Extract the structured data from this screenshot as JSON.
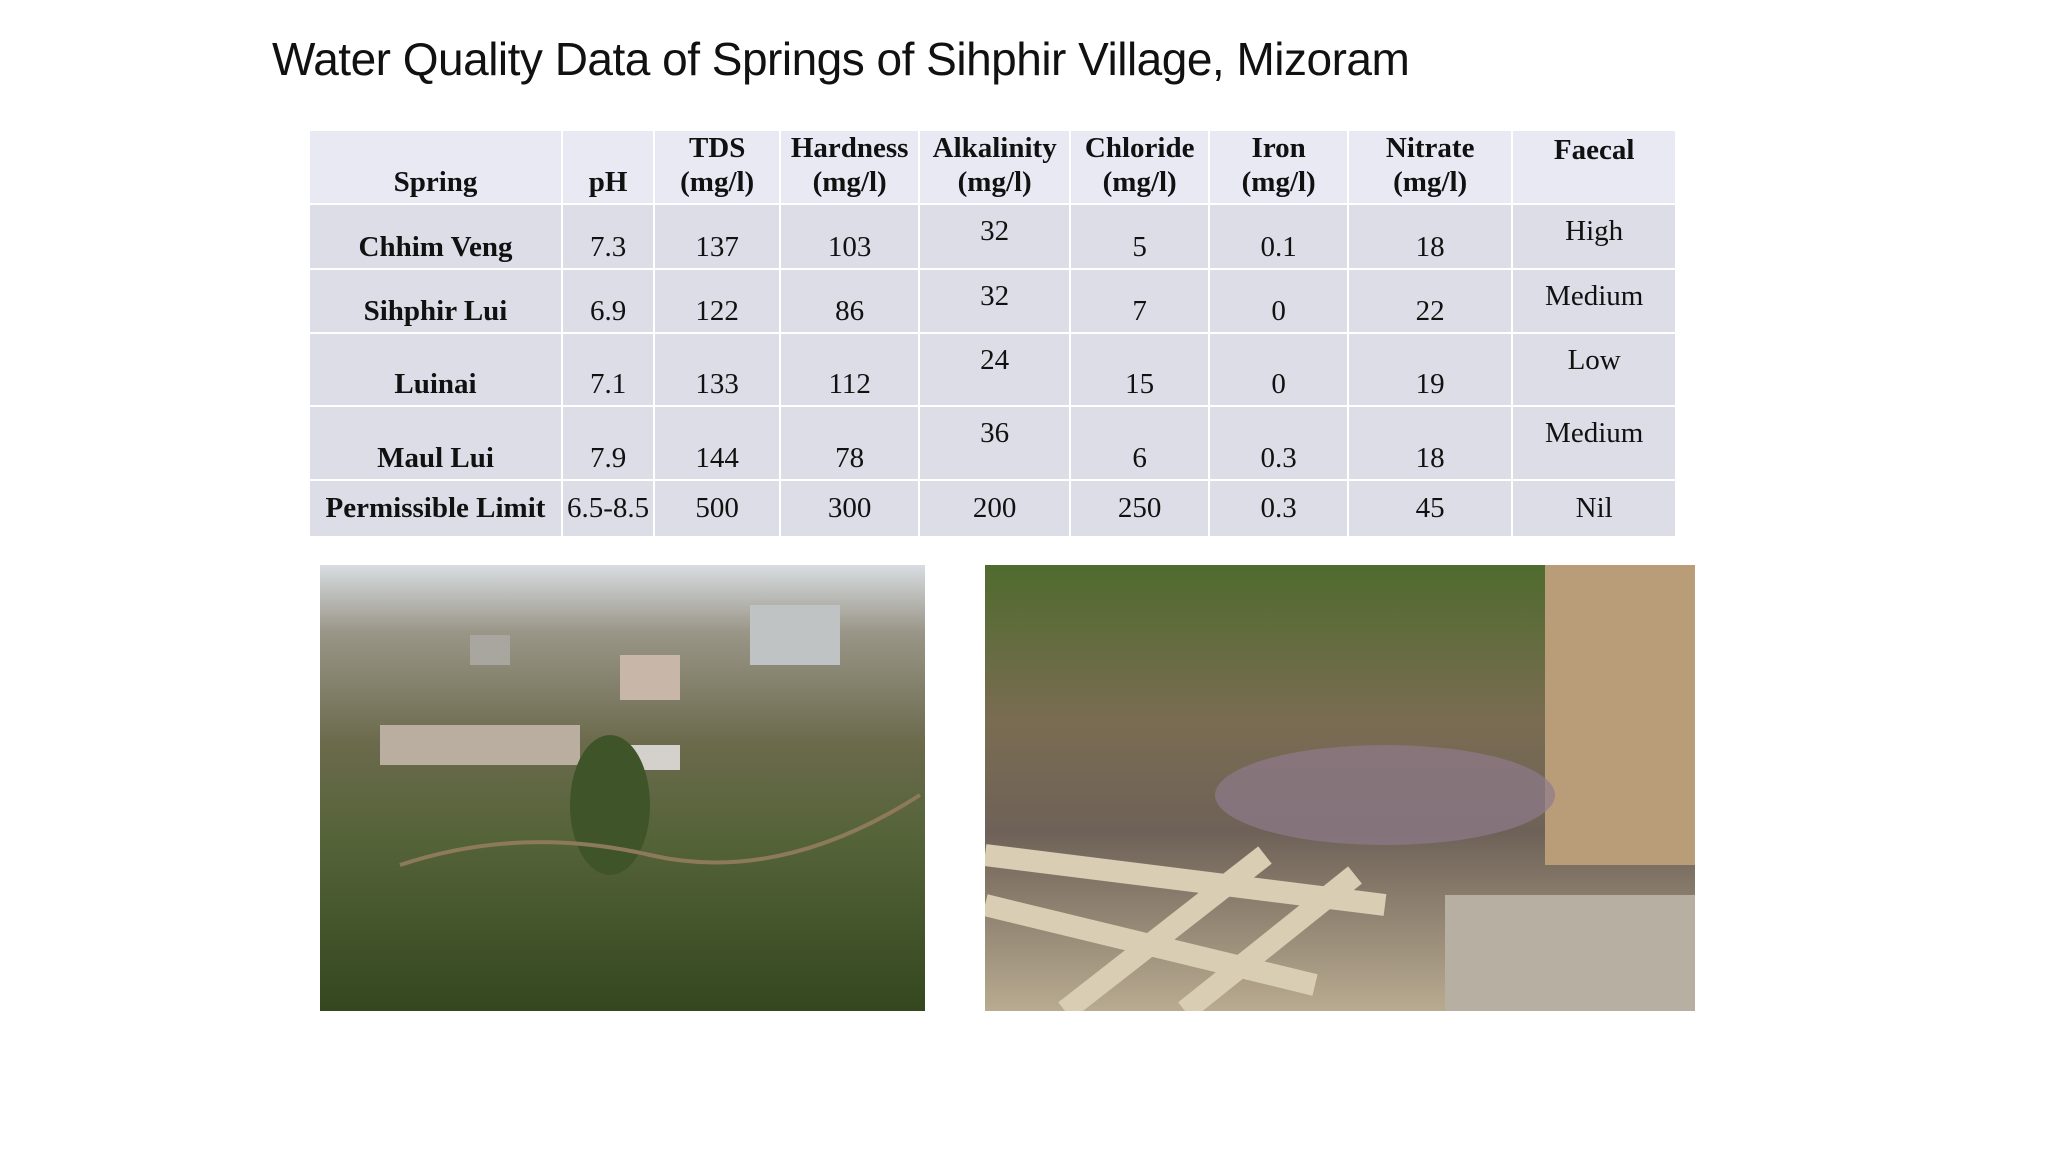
{
  "header": {
    "title": "Water Quality Data of Springs of Sihphir Village, Mizoram"
  },
  "table": {
    "columns": [
      {
        "name": "Spring"
      },
      {
        "name": "pH"
      },
      {
        "name": "TDS",
        "unit": "(mg/l)"
      },
      {
        "name": "Hardness",
        "unit": "(mg/l)"
      },
      {
        "name": "Alkalinity",
        "unit": "(mg/l)"
      },
      {
        "name": "Chloride",
        "unit": "(mg/l)"
      },
      {
        "name": "Iron",
        "unit": "(mg/l)"
      },
      {
        "name": "Nitrate",
        "unit": "(mg/l)"
      },
      {
        "name": "Faecal"
      }
    ],
    "rows": [
      [
        "Chhim Veng",
        7.3,
        137,
        103,
        32,
        5,
        0.1,
        18,
        "High"
      ],
      [
        "Sihphir Lui",
        6.9,
        122,
        86,
        32,
        7,
        0,
        22,
        "Medium"
      ],
      [
        "Luinai",
        7.1,
        133,
        112,
        24,
        15,
        0,
        19,
        "Low"
      ],
      [
        "Maul Lui",
        7.9,
        144,
        78,
        36,
        6,
        0.3,
        18,
        "Medium"
      ],
      [
        "Permissible Limit",
        "6.5-8.5",
        500,
        300,
        200,
        250,
        0.3,
        45,
        "Nil"
      ]
    ]
  }
}
